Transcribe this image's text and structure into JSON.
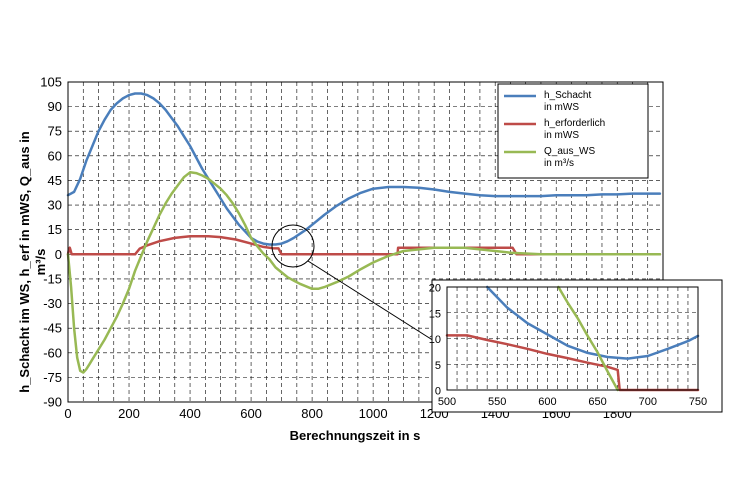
{
  "chart_data": [
    {
      "type": "line",
      "xlabel": "Berechnungszeit in s",
      "ylabel_lines": [
        "h_Schacht im WS, h_erf in mWS, Q_aus in",
        "m³/s"
      ],
      "xlim": [
        0,
        1950
      ],
      "ylim": [
        -90,
        105
      ],
      "xticks": [
        0,
        200,
        400,
        600,
        800,
        1000,
        1200,
        1400,
        1600,
        1800
      ],
      "yticks": [
        -90,
        -75,
        -60,
        -45,
        -30,
        -15,
        0,
        15,
        30,
        45,
        60,
        75,
        90,
        105
      ],
      "x_minor_grid_step": 50,
      "grid": true,
      "legend_position": "top-right",
      "series": [
        {
          "name": "h_Schacht in mWS",
          "legend": [
            "h_Schacht",
            "in mWS"
          ],
          "color": "#4a7ebb",
          "x": [
            0,
            20,
            40,
            60,
            80,
            100,
            120,
            140,
            160,
            180,
            200,
            220,
            240,
            260,
            280,
            300,
            320,
            340,
            360,
            380,
            400,
            420,
            440,
            460,
            480,
            500,
            520,
            540,
            560,
            580,
            600,
            620,
            640,
            660,
            680,
            700,
            720,
            740,
            760,
            780,
            800,
            840,
            880,
            920,
            960,
            1000,
            1050,
            1100,
            1150,
            1200,
            1250,
            1300,
            1350,
            1400,
            1450,
            1500,
            1550,
            1600,
            1650,
            1700,
            1750,
            1800,
            1850,
            1900,
            1940
          ],
          "values": [
            36,
            38,
            46,
            57,
            66,
            75,
            82,
            88,
            92,
            95,
            97,
            98,
            98,
            97,
            95,
            92,
            88,
            83,
            78,
            72,
            66,
            59,
            52,
            46,
            40,
            34,
            28,
            23,
            18,
            14,
            10,
            7.8,
            6.5,
            6.0,
            6.0,
            6.5,
            8,
            10,
            12.5,
            15,
            18,
            24,
            29.5,
            34,
            37.5,
            40,
            41,
            41,
            40.5,
            39.5,
            38,
            37,
            36,
            35.5,
            35.5,
            35.5,
            35.5,
            36,
            36,
            36,
            36.5,
            36.5,
            37,
            37,
            37
          ]
        },
        {
          "name": "h_erforderlich in mWS",
          "legend": [
            "h_erforderlich",
            "in mWS"
          ],
          "color": "#be4b48",
          "x": [
            0,
            3,
            6,
            12,
            100,
            220,
            235,
            260,
            300,
            350,
            400,
            430,
            460,
            500,
            550,
            600,
            640,
            670,
            690,
            700,
            800,
            900,
            1000,
            1080,
            1082,
            1200,
            1300,
            1450,
            1457,
            1470,
            1600,
            1700,
            1800,
            1900,
            1940
          ],
          "values": [
            0,
            3,
            4,
            0,
            0,
            0,
            3.5,
            5.5,
            8,
            10,
            11,
            11,
            11,
            10.5,
            9,
            6.5,
            4.5,
            3.7,
            3.6,
            0,
            0,
            0,
            0,
            0,
            4,
            4,
            4,
            4,
            4,
            0,
            0,
            0,
            0,
            0,
            0
          ]
        },
        {
          "name": "Q_aus_WS in m³/s",
          "legend": [
            "Q_aus_WS",
            "in m³/s"
          ],
          "color": "#98b954",
          "x": [
            0,
            10,
            20,
            30,
            40,
            50,
            60,
            70,
            80,
            100,
            120,
            140,
            160,
            180,
            200,
            220,
            240,
            260,
            280,
            300,
            320,
            340,
            360,
            380,
            400,
            420,
            440,
            460,
            480,
            500,
            520,
            540,
            560,
            580,
            600,
            620,
            640,
            660,
            680,
            700,
            720,
            740,
            760,
            780,
            800,
            820,
            840,
            880,
            920,
            960,
            1000,
            1050,
            1100,
            1150,
            1200,
            1250,
            1300,
            1350,
            1400,
            1450,
            1500,
            1550,
            1600,
            1650,
            1700,
            1750,
            1800,
            1850,
            1900,
            1940
          ],
          "values": [
            0,
            -20,
            -45,
            -63,
            -71,
            -72,
            -70,
            -67,
            -64,
            -58,
            -52,
            -45,
            -38,
            -30,
            -21,
            -10,
            -1,
            8,
            16,
            24,
            31,
            37,
            42,
            47,
            50,
            49.5,
            48,
            46,
            43,
            40,
            36,
            31,
            25,
            18,
            10,
            5,
            0.5,
            -3,
            -8,
            -11,
            -14,
            -16,
            -18,
            -19.5,
            -21,
            -21,
            -20,
            -17,
            -13.5,
            -9,
            -5,
            -1,
            2,
            3,
            4,
            4,
            4,
            3,
            2,
            1,
            0.5,
            0,
            0,
            0,
            0,
            0,
            0,
            0,
            0,
            0
          ]
        }
      ]
    },
    {
      "type": "line",
      "description_role": "inset",
      "xlim": [
        500,
        750
      ],
      "ylim": [
        0,
        20
      ],
      "xticks": [
        500,
        550,
        600,
        650,
        700,
        750
      ],
      "yticks": [
        0,
        5,
        10,
        15,
        20
      ],
      "x_minor_grid_step": 10,
      "grid": true,
      "series": [
        {
          "name": "h_Schacht in mWS",
          "color": "#4a7ebb",
          "x": [
            540,
            560,
            580,
            600,
            620,
            640,
            660,
            680,
            700,
            720,
            740,
            750
          ],
          "values": [
            20,
            16,
            13,
            10.8,
            8.6,
            7.2,
            6.4,
            6.1,
            6.6,
            8.0,
            9.5,
            10.5
          ]
        },
        {
          "name": "h_erforderlich in mWS",
          "color": "#be4b48",
          "x": [
            500,
            520,
            540,
            560,
            580,
            600,
            620,
            640,
            660,
            670,
            672,
            690,
            750
          ],
          "values": [
            10.6,
            10.6,
            9.7,
            8.9,
            8.0,
            7.0,
            6.2,
            5.3,
            4.5,
            3.9,
            0,
            0,
            0
          ]
        },
        {
          "name": "Q_aus_WS in m³/s",
          "color": "#98b954",
          "x": [
            611,
            620,
            630,
            640,
            650,
            660,
            670
          ],
          "values": [
            20,
            17,
            14,
            10.5,
            7.3,
            3.6,
            0
          ]
        }
      ]
    }
  ]
}
